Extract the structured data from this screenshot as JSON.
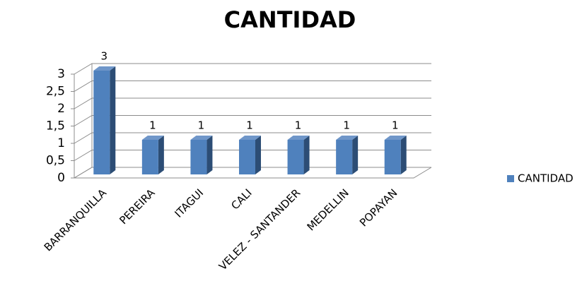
{
  "chart_data": {
    "type": "bar3d",
    "title": "CANTIDAD",
    "categories": [
      "BARRANQUILLA",
      "PEREIRA",
      "ITAGUI",
      "CALI",
      "VELEZ - SANTANDER",
      "MEDELLIN",
      "POPAYAN"
    ],
    "series": [
      {
        "name": "CANTIDAD",
        "color": "#4f81bd",
        "values": [
          3,
          1,
          1,
          1,
          1,
          1,
          1
        ]
      }
    ],
    "ylim": [
      0,
      3
    ],
    "yticks": [
      0,
      {
        "value": 0.5,
        "label": "0,5"
      },
      1,
      {
        "value": 1.5,
        "label": "1,5"
      },
      2,
      {
        "value": 2.5,
        "label": "2,5"
      },
      3
    ],
    "grid": true,
    "legend": "right"
  }
}
